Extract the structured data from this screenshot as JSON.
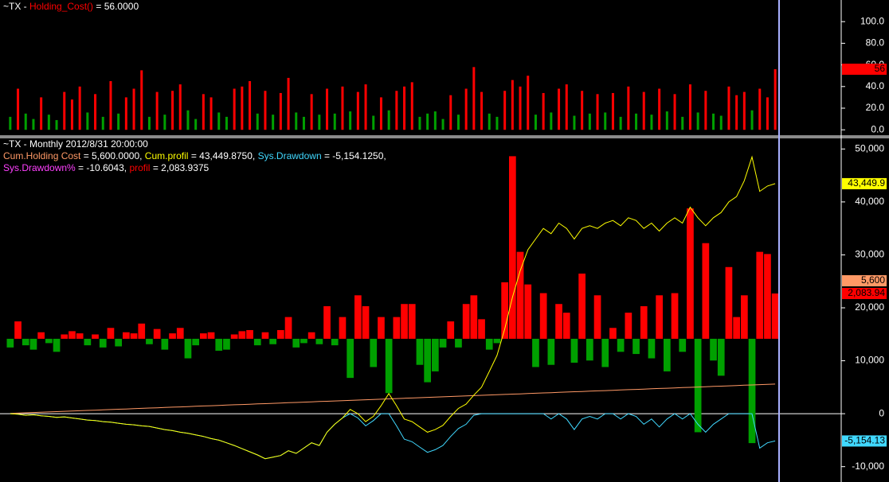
{
  "chart_data": [
    {
      "type": "bar",
      "title": "~TX -",
      "series": [
        {
          "name": "Holding_Cost()",
          "color": "#ff0000",
          "negative_color": "#00a000",
          "legend_value": "= 56.0000",
          "last_label": "56",
          "values": [
            12,
            38,
            15,
            10,
            30,
            14,
            9,
            35,
            28,
            40,
            16,
            33,
            12,
            45,
            15,
            30,
            38,
            55,
            12,
            35,
            14,
            36,
            42,
            18,
            10,
            33,
            30,
            16,
            12,
            38,
            40,
            45,
            15,
            36,
            14,
            34,
            48,
            16,
            12,
            33,
            14,
            38,
            15,
            40,
            17,
            35,
            42,
            13,
            30,
            18,
            36,
            40,
            44,
            12,
            15,
            17,
            10,
            32,
            14,
            38,
            58,
            35,
            15,
            12,
            36,
            46,
            40,
            50,
            14,
            34,
            16,
            38,
            42,
            13,
            36,
            15,
            33,
            16,
            34,
            12,
            40,
            15,
            35,
            14,
            38,
            17,
            33,
            12,
            42,
            16,
            36,
            15,
            13,
            40,
            32,
            35,
            18,
            38,
            30,
            56
          ]
        }
      ],
      "ylim": [
        -5,
        120
      ],
      "yticks": [
        {
          "value": 0,
          "label": "0.0"
        },
        {
          "value": 20,
          "label": "20.0"
        },
        {
          "value": 40,
          "label": "40.0"
        },
        {
          "value": 60,
          "label": "60.0"
        },
        {
          "value": 80,
          "label": "80.0"
        },
        {
          "value": 100,
          "label": "100.0"
        }
      ]
    },
    {
      "type": "mixed",
      "title": "~TX - Monthly 2012/8/31 20:00:00",
      "series": [
        {
          "name": "Cum.Holding Cost",
          "type": "line",
          "color": "#ff9966",
          "legend_value": "= 5,600.0000,",
          "last_label": "5,600",
          "values": [
            56,
            112,
            168,
            224,
            280,
            336,
            392,
            448,
            504,
            560,
            616,
            672,
            728,
            784,
            840,
            896,
            952,
            1008,
            1064,
            1120,
            1176,
            1232,
            1288,
            1344,
            1400,
            1456,
            1512,
            1568,
            1624,
            1680,
            1736,
            1792,
            1848,
            1904,
            1960,
            2016,
            2072,
            2128,
            2184,
            2240,
            2296,
            2352,
            2408,
            2464,
            2520,
            2576,
            2632,
            2688,
            2744,
            2800,
            2856,
            2912,
            2968,
            3024,
            3080,
            3136,
            3192,
            3248,
            3304,
            3360,
            3416,
            3472,
            3528,
            3584,
            3640,
            3696,
            3752,
            3808,
            3864,
            3920,
            3976,
            4032,
            4088,
            4144,
            4200,
            4256,
            4312,
            4368,
            4424,
            4480,
            4536,
            4592,
            4648,
            4704,
            4760,
            4816,
            4872,
            4928,
            4984,
            5040,
            5096,
            5152,
            5208,
            5264,
            5320,
            5376,
            5432,
            5488,
            5544,
            5600
          ]
        },
        {
          "name": "Cum.profil",
          "type": "line",
          "color": "#ffff00",
          "legend_value": "= 43,449.8750,",
          "last_label": "43,449.9",
          "values": [
            0,
            -100,
            -300,
            -200,
            -400,
            -500,
            -700,
            -600,
            -800,
            -1000,
            -1200,
            -1300,
            -1500,
            -1600,
            -1800,
            -2000,
            -2100,
            -2300,
            -2400,
            -2700,
            -3000,
            -3200,
            -3500,
            -3700,
            -4000,
            -4300,
            -4700,
            -5000,
            -5500,
            -6000,
            -6600,
            -7200,
            -7800,
            -8500,
            -8200,
            -7900,
            -7000,
            -7500,
            -6500,
            -5500,
            -6000,
            -3500,
            -2000,
            -800,
            800,
            0,
            -1500,
            -500,
            1500,
            3800,
            1500,
            -1000,
            -1500,
            -2500,
            -3500,
            -3000,
            -2200,
            -500,
            1000,
            1800,
            3500,
            5000,
            8000,
            11000,
            16000,
            22000,
            27000,
            31000,
            33000,
            35000,
            34000,
            36000,
            35000,
            33000,
            35000,
            35500,
            35000,
            36000,
            36500,
            35500,
            37000,
            36500,
            35000,
            36000,
            34500,
            36000,
            37000,
            36000,
            39000,
            37000,
            35500,
            37000,
            38000,
            40000,
            41000,
            44000,
            48500,
            42000,
            43000,
            43449.875
          ]
        },
        {
          "name": "Sys.Drawdown",
          "type": "line",
          "color": "#40d8ff",
          "legend_value": "= -5,154.1250,",
          "last_label": "-5,154.13",
          "values": [
            0,
            -100,
            -300,
            -200,
            -400,
            -500,
            -700,
            -600,
            -800,
            -1000,
            -1200,
            -1300,
            -1500,
            -1600,
            -1800,
            -2000,
            -2100,
            -2300,
            -2400,
            -2700,
            -3000,
            -3200,
            -3500,
            -3700,
            -4000,
            -4300,
            -4700,
            -5000,
            -5500,
            -6000,
            -6600,
            -7200,
            -7800,
            -8500,
            -8200,
            -7900,
            -7000,
            -7500,
            -6500,
            -5500,
            -6000,
            -3500,
            -2000,
            -800,
            0,
            -800,
            -2300,
            -1300,
            0,
            0,
            -2300,
            -4800,
            -5300,
            -6300,
            -7300,
            -6800,
            -6000,
            -4300,
            -2800,
            -2000,
            -300,
            0,
            0,
            0,
            0,
            0,
            0,
            0,
            0,
            0,
            -1000,
            0,
            -1000,
            -3000,
            -1000,
            -500,
            -1000,
            0,
            0,
            -1000,
            0,
            -500,
            -2000,
            -1000,
            -2500,
            -1000,
            0,
            -1000,
            0,
            -2000,
            -3500,
            -2000,
            -1000,
            0,
            0,
            0,
            0,
            -6500,
            -5500,
            -5154.125
          ]
        },
        {
          "name": "Sys.Drawdown%",
          "type": "line",
          "color": "#ff40ff",
          "legend_value": "= -10.6043,"
        },
        {
          "name": "profil",
          "type": "bar",
          "axis": "y2",
          "color": "#ff0000",
          "negative_color": "#00a000",
          "legend_value": "= 2,083.9375",
          "last_label": "2,083.94",
          "values": [
            -400,
            800,
            -300,
            -500,
            300,
            -200,
            -600,
            200,
            350,
            250,
            -300,
            200,
            -400,
            500,
            -350,
            300,
            250,
            700,
            -250,
            450,
            -500,
            250,
            500,
            -900,
            -300,
            250,
            300,
            -550,
            -500,
            200,
            350,
            400,
            -300,
            300,
            -250,
            400,
            1000,
            -400,
            -200,
            300,
            -250,
            1500,
            -300,
            1000,
            -1800,
            2000,
            1500,
            -1300,
            1000,
            -2500,
            1000,
            1600,
            1600,
            -1200,
            -2000,
            -1500,
            -400,
            800,
            -400,
            1600,
            2000,
            900,
            -500,
            -200,
            2600,
            8400,
            4000,
            2500,
            -1300,
            2100,
            -1200,
            1600,
            1200,
            -1100,
            3000,
            -1000,
            2000,
            -1300,
            500,
            -600,
            1200,
            -700,
            1500,
            -900,
            2000,
            -1500,
            2100,
            -600,
            6000,
            -4300,
            4400,
            -1000,
            -1700,
            3300,
            1000,
            2000,
            -4800,
            4000,
            3900,
            2083.94
          ]
        }
      ],
      "ylim": [
        -12000,
        52000
      ],
      "yticks": [
        {
          "value": -10000,
          "label": "-10,000"
        },
        0,
        {
          "value": 10000,
          "label": "10,000"
        },
        {
          "value": 20000,
          "label": "20,000"
        },
        {
          "value": 30000,
          "label": "30,000"
        },
        {
          "value": 40000,
          "label": "40,000"
        },
        {
          "value": 50000,
          "label": "50,000"
        }
      ],
      "y2lim": [
        -6370,
        9220
      ]
    }
  ]
}
